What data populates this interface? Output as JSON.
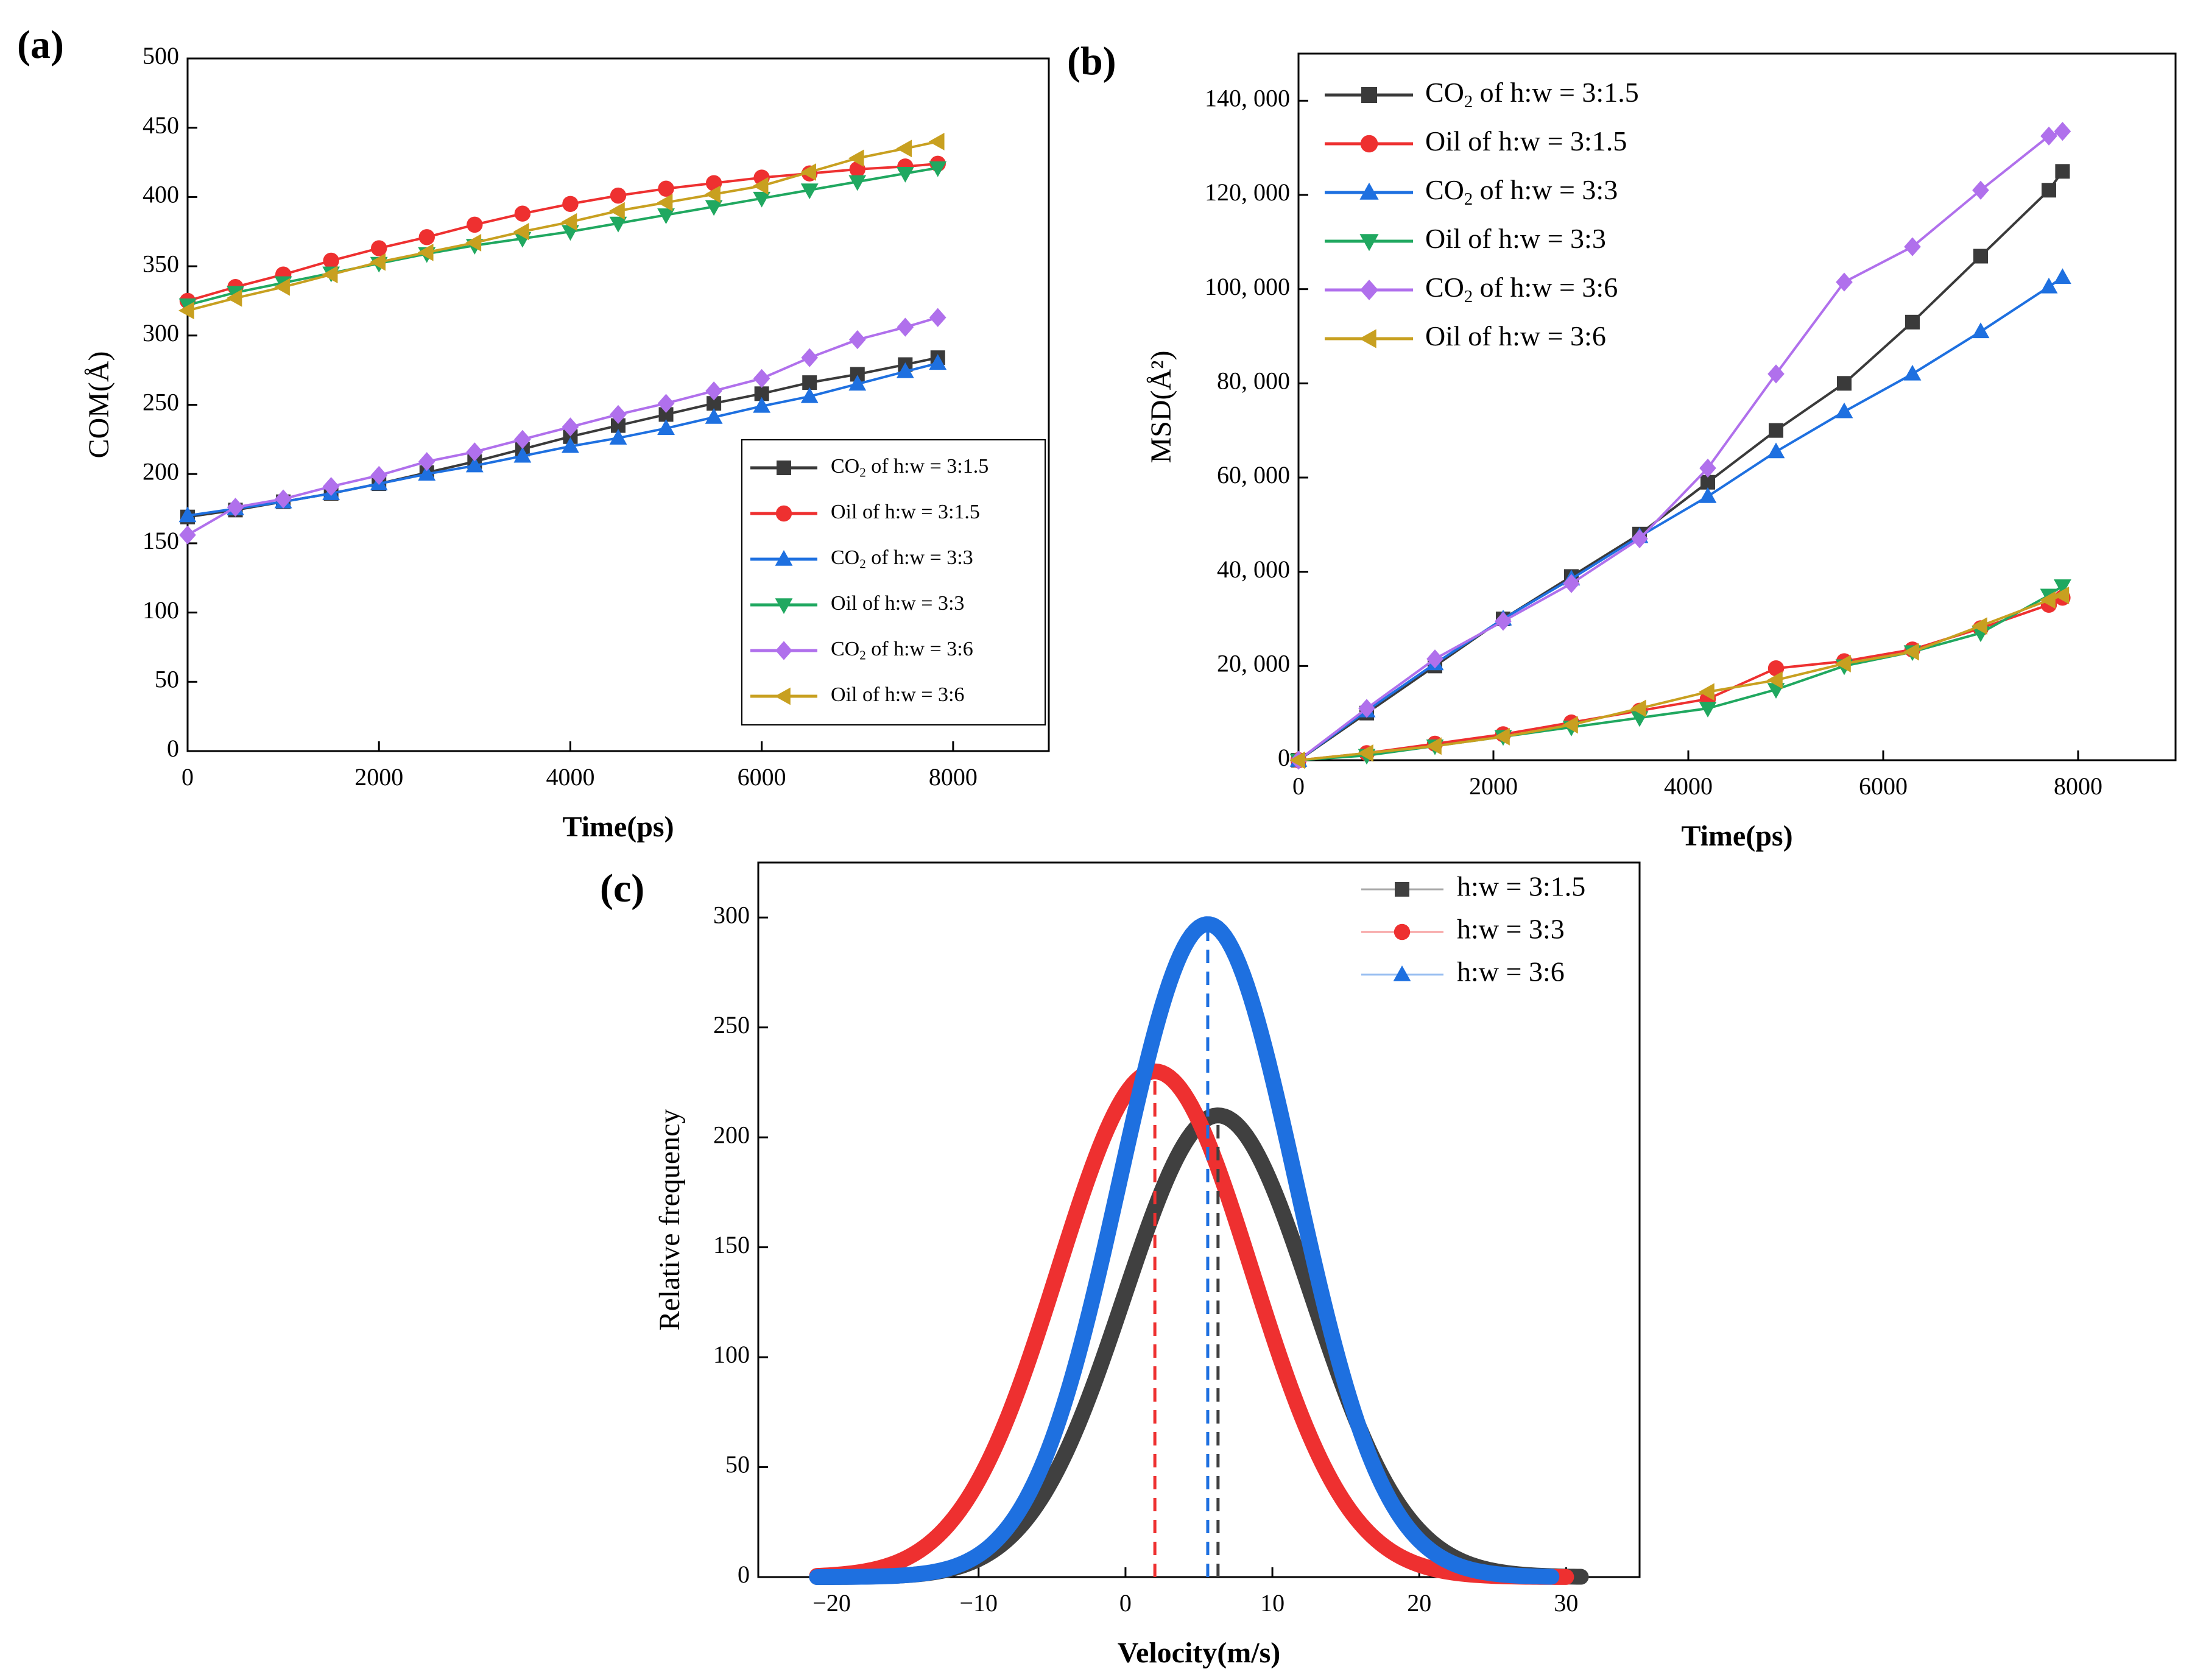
{
  "panels": [
    {
      "label": "(a)"
    },
    {
      "label": "(b)"
    },
    {
      "label": "(c)"
    }
  ],
  "chart_data": [
    {
      "id": "a",
      "type": "line",
      "xlabel": "Time(ps)",
      "ylabel": "COM(Å)",
      "xlim": [
        0,
        9000
      ],
      "ylim": [
        0,
        500
      ],
      "xticks": [
        0,
        2000,
        4000,
        6000,
        8000
      ],
      "yticks": [
        0,
        50,
        100,
        150,
        200,
        250,
        300,
        350,
        400,
        450,
        500
      ],
      "legend_position": "bottom-right",
      "series": [
        {
          "name": "CO2 of h:w = 3:1.5",
          "legend": {
            "base": "CO",
            "sub": "2",
            "rest": " of h:w = 3:1.5"
          },
          "color": "#3a3a3a",
          "marker": "square",
          "x": [
            0,
            500,
            1000,
            1500,
            2000,
            2500,
            3000,
            3500,
            4000,
            4500,
            5000,
            5500,
            6000,
            6500,
            7000,
            7500,
            7840
          ],
          "y": [
            169,
            174,
            180,
            186,
            193,
            201,
            209,
            218,
            227,
            235,
            243,
            251,
            258,
            266,
            272,
            279,
            284
          ]
        },
        {
          "name": "Oil of h:w = 3:1.5",
          "legend": {
            "base": "Oil of h:w = 3:1.5",
            "sub": "",
            "rest": ""
          },
          "color": "#ee3030",
          "marker": "circle",
          "x": [
            0,
            500,
            1000,
            1500,
            2000,
            2500,
            3000,
            3500,
            4000,
            4500,
            5000,
            5500,
            6000,
            6500,
            7000,
            7500,
            7840
          ],
          "y": [
            325,
            335,
            344,
            354,
            363,
            371,
            380,
            388,
            395,
            401,
            406,
            410,
            414,
            417,
            420,
            422,
            424
          ]
        },
        {
          "name": "CO2 of h:w = 3:3",
          "legend": {
            "base": "CO",
            "sub": "2",
            "rest": " of h:w = 3:3"
          },
          "color": "#1e70e0",
          "marker": "triangle-up",
          "x": [
            0,
            500,
            1000,
            1500,
            2000,
            2500,
            3000,
            3500,
            4000,
            4500,
            5000,
            5500,
            6000,
            6500,
            7000,
            7500,
            7840
          ],
          "y": [
            170,
            175,
            180,
            186,
            193,
            200,
            206,
            213,
            220,
            226,
            233,
            241,
            249,
            256,
            265,
            274,
            280
          ]
        },
        {
          "name": "Oil of h:w = 3:3",
          "legend": {
            "base": "Oil of h:w = 3:3",
            "sub": "",
            "rest": ""
          },
          "color": "#20a860",
          "marker": "triangle-down",
          "x": [
            0,
            500,
            1000,
            1500,
            2000,
            2500,
            3000,
            3500,
            4000,
            4500,
            5000,
            5500,
            6000,
            6500,
            7000,
            7500,
            7840
          ],
          "y": [
            322,
            331,
            338,
            345,
            352,
            359,
            365,
            370,
            375,
            381,
            387,
            393,
            399,
            405,
            411,
            417,
            421
          ]
        },
        {
          "name": "CO2 of h:w = 3:6",
          "legend": {
            "base": "CO",
            "sub": "2",
            "rest": " of h:w = 3:6"
          },
          "color": "#b070ec",
          "marker": "diamond",
          "x": [
            0,
            500,
            1000,
            1500,
            2000,
            2500,
            3000,
            3500,
            4000,
            4500,
            5000,
            5500,
            6000,
            6500,
            7000,
            7500,
            7840
          ],
          "y": [
            156,
            176,
            182,
            191,
            199,
            209,
            216,
            225,
            234,
            243,
            251,
            260,
            269,
            284,
            297,
            306,
            313
          ]
        },
        {
          "name": "Oil of h:w = 3:6",
          "legend": {
            "base": "Oil of h:w = 3:6",
            "sub": "",
            "rest": ""
          },
          "color": "#c8a020",
          "marker": "triangle-left",
          "x": [
            0,
            500,
            1000,
            1500,
            2000,
            2500,
            3000,
            3500,
            4000,
            4500,
            5000,
            5500,
            6000,
            6500,
            7000,
            7500,
            7840
          ],
          "y": [
            318,
            327,
            335,
            344,
            353,
            360,
            367,
            375,
            382,
            390,
            396,
            402,
            408,
            418,
            428,
            435,
            440
          ]
        }
      ]
    },
    {
      "id": "b",
      "type": "line",
      "xlabel": "Time(ps)",
      "ylabel": "MSD(Å²)",
      "xlim": [
        0,
        9000
      ],
      "ylim": [
        0,
        150000
      ],
      "xticks": [
        0,
        2000,
        4000,
        6000,
        8000
      ],
      "yticks": [
        0,
        20000,
        40000,
        60000,
        80000,
        100000,
        120000,
        140000
      ],
      "ytick_labels": [
        "0",
        "20, 000",
        "40, 000",
        "60, 000",
        "80, 000",
        "100, 000",
        "120, 000",
        "140, 000"
      ],
      "legend_position": "top-left",
      "series": [
        {
          "name": "CO2 of h:w = 3:1.5",
          "legend": {
            "base": "CO",
            "sub": "2",
            "rest": " of h:w = 3:1.5"
          },
          "color": "#3a3a3a",
          "marker": "square",
          "x": [
            0,
            700,
            1400,
            2100,
            2800,
            3500,
            4200,
            4900,
            5600,
            6300,
            7000,
            7700,
            7840
          ],
          "y": [
            0,
            10000,
            20000,
            30000,
            39000,
            48000,
            59000,
            70000,
            80000,
            93000,
            107000,
            121000,
            125000
          ]
        },
        {
          "name": "Oil of h:w = 3:1.5",
          "legend": {
            "base": "Oil of h:w = 3:1.5",
            "sub": "",
            "rest": ""
          },
          "color": "#ee3030",
          "marker": "circle",
          "x": [
            0,
            700,
            1400,
            2100,
            2800,
            3500,
            4200,
            4900,
            5600,
            6300,
            7000,
            7700,
            7840
          ],
          "y": [
            0,
            1500,
            3500,
            5500,
            8000,
            10500,
            13000,
            19500,
            21000,
            23500,
            28000,
            33000,
            34500
          ]
        },
        {
          "name": "CO2 of h:w = 3:3",
          "legend": {
            "base": "CO",
            "sub": "2",
            "rest": " of h:w = 3:3"
          },
          "color": "#1e70e0",
          "marker": "triangle-up",
          "x": [
            0,
            700,
            1400,
            2100,
            2800,
            3500,
            4200,
            4900,
            5600,
            6300,
            7000,
            7700,
            7840
          ],
          "y": [
            0,
            10500,
            20500,
            30000,
            38500,
            47500,
            56000,
            65500,
            74000,
            82000,
            91000,
            100500,
            102500
          ]
        },
        {
          "name": "Oil of h:w = 3:3",
          "legend": {
            "base": "Oil of h:w = 3:3",
            "sub": "",
            "rest": ""
          },
          "color": "#20a860",
          "marker": "triangle-down",
          "x": [
            0,
            700,
            1400,
            2100,
            2800,
            3500,
            4200,
            4900,
            5600,
            6300,
            7000,
            7700,
            7840
          ],
          "y": [
            0,
            1000,
            3000,
            5000,
            7000,
            9000,
            11000,
            15000,
            20000,
            23000,
            27000,
            35000,
            37000
          ]
        },
        {
          "name": "CO2 of h:w = 3:6",
          "legend": {
            "base": "CO",
            "sub": "2",
            "rest": " of h:w = 3:6"
          },
          "color": "#b070ec",
          "marker": "diamond",
          "x": [
            0,
            700,
            1400,
            2100,
            2800,
            3500,
            4200,
            4900,
            5600,
            6300,
            7000,
            7700,
            7840
          ],
          "y": [
            0,
            11000,
            21500,
            29500,
            37500,
            47000,
            62000,
            82000,
            101500,
            109000,
            121000,
            132500,
            133500
          ]
        },
        {
          "name": "Oil of h:w = 3:6",
          "legend": {
            "base": "Oil of h:w = 3:6",
            "sub": "",
            "rest": ""
          },
          "color": "#c8a020",
          "marker": "triangle-left",
          "x": [
            0,
            700,
            1400,
            2100,
            2800,
            3500,
            4200,
            4900,
            5600,
            6300,
            7000,
            7700,
            7840
          ],
          "y": [
            0,
            1500,
            3000,
            5000,
            7500,
            11000,
            14500,
            17000,
            20500,
            23000,
            28500,
            34000,
            35000
          ]
        }
      ]
    },
    {
      "id": "c",
      "type": "line",
      "xlabel": "Velocity(m/s)",
      "ylabel": "Relative frequency",
      "xlim": [
        -25,
        35
      ],
      "ylim": [
        0,
        325
      ],
      "xticks": [
        -20,
        -10,
        0,
        10,
        20,
        30
      ],
      "xtick_labels": [
        "−20",
        "−10",
        "0",
        "10",
        "20",
        "30"
      ],
      "yticks": [
        0,
        50,
        100,
        150,
        200,
        250,
        300
      ],
      "legend_position": "top-right",
      "series": [
        {
          "name": "h:w = 3:1.5",
          "color": "#404040",
          "marker": "square",
          "peak_x": 6.3,
          "peak_y": 210,
          "sigma": 6.4,
          "x_start": -21,
          "x_end": 31
        },
        {
          "name": "h:w = 3:3",
          "color": "#ee3030",
          "marker": "circle",
          "peak_x": 2.0,
          "peak_y": 230,
          "sigma": 6.6,
          "x_start": -21,
          "x_end": 30
        },
        {
          "name": "h:w = 3:6",
          "color": "#1e70e0",
          "marker": "triangle-up",
          "peak_x": 5.6,
          "peak_y": 297,
          "sigma": 6.0,
          "x_start": -21,
          "x_end": 29
        }
      ]
    }
  ]
}
